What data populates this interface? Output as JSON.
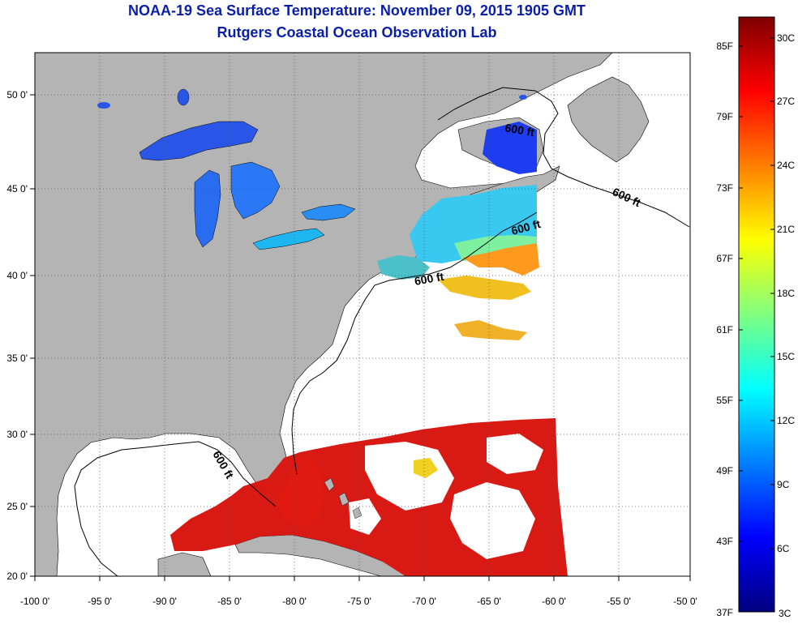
{
  "header": {
    "title": "NOAA-19 Sea Surface Temperature:  November 09, 2015 1905 GMT",
    "subtitle": "Rutgers Coastal Ocean Observation Lab"
  },
  "map": {
    "lon_ticks": [
      "-100 0'",
      "-95 0'",
      "-90 0'",
      "-85 0'",
      "-80 0'",
      "-75 0'",
      "-70 0'",
      "-65 0'",
      "-60 0'",
      "-55 0'",
      "-50 0'"
    ],
    "lat_ticks": [
      "50 0'",
      "45 0'",
      "40 0'",
      "35 0'",
      "30 0'",
      "25 0'",
      "20 0'"
    ],
    "contour_label": "600 ft",
    "land_color": "#b4b4b4",
    "grid": true
  },
  "colorbar": {
    "fahrenheit_labels": [
      "85F",
      "79F",
      "73F",
      "67F",
      "61F",
      "55F",
      "49F",
      "43F",
      "37F"
    ],
    "celsius_labels": [
      "30C",
      "27C",
      "24C",
      "21C",
      "18C",
      "15C",
      "12C",
      "9C",
      "6C",
      "3C"
    ],
    "colors_low_to_high": [
      "#00007f",
      "#0000ff",
      "#007fff",
      "#00ffff",
      "#7fff7f",
      "#ffff00",
      "#ff7f00",
      "#ff0000",
      "#7f0000"
    ]
  }
}
